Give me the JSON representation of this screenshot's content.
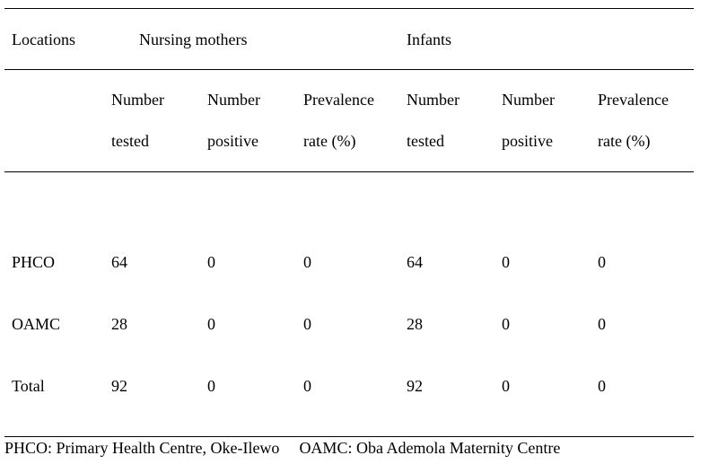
{
  "table": {
    "header_row1": {
      "locations": "Locations",
      "group_mothers": "Nursing mothers",
      "group_infants": "Infants"
    },
    "header_row2": [
      [
        "Number",
        "tested"
      ],
      [
        "Number",
        "positive"
      ],
      [
        "Prevalence",
        "rate (%)"
      ],
      [
        "Number",
        "tested"
      ],
      [
        "Number",
        "positive"
      ],
      [
        "Prevalence",
        "rate (%)"
      ]
    ],
    "rows": [
      {
        "location": "PHCO",
        "values": [
          "64",
          "0",
          "0",
          "64",
          "0",
          "0"
        ]
      },
      {
        "location": "OAMC",
        "values": [
          "28",
          "0",
          "0",
          "28",
          "0",
          "0"
        ]
      },
      {
        "location": "Total",
        "values": [
          "92",
          "0",
          "0",
          "92",
          "0",
          "0"
        ]
      }
    ]
  },
  "footnote": {
    "phco": "PHCO: Primary Health Centre, Oke-Ilewo",
    "oamc": "OAMC: Oba Ademola Maternity Centre"
  }
}
